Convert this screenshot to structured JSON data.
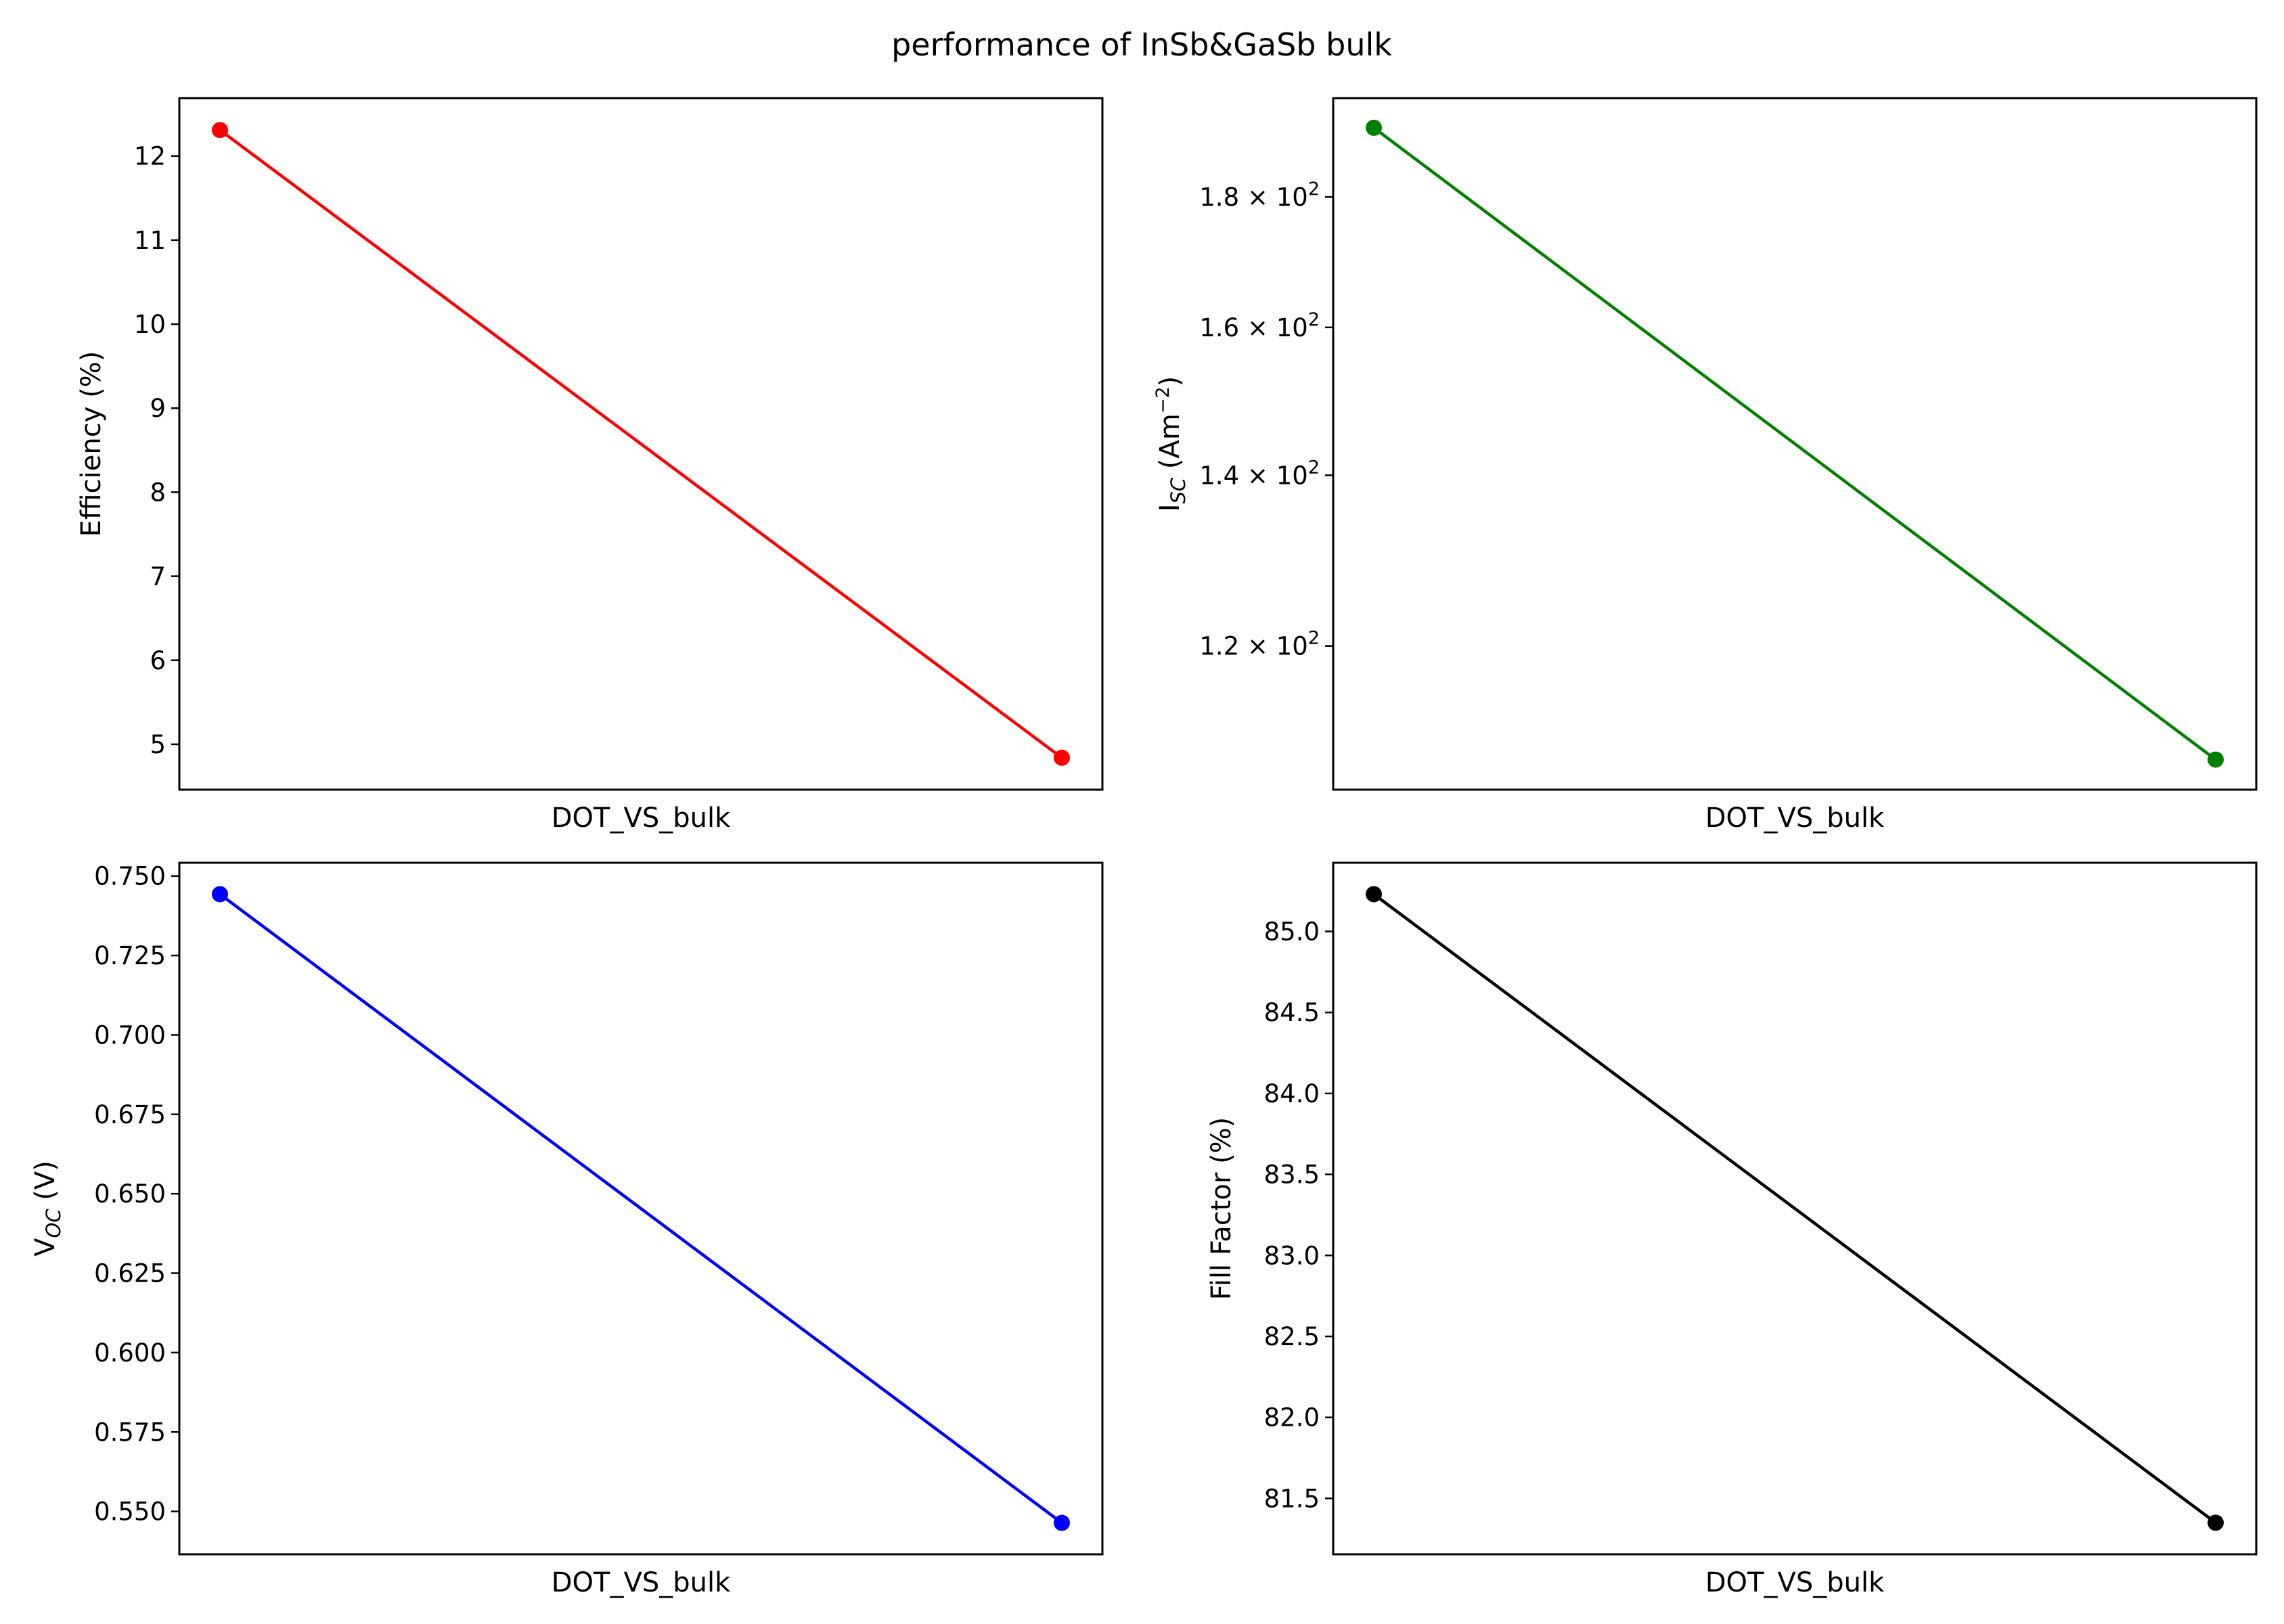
{
  "figure": {
    "title": "performance of InSb&GaSb bulk"
  },
  "chart_data": [
    {
      "type": "line",
      "ylabel": "Efficiency (%)",
      "xlabel": "DOT_VS_bulk",
      "x": [
        0,
        1
      ],
      "series": [
        {
          "values": [
            12.31,
            4.84
          ]
        }
      ],
      "color": "#ff0000",
      "ylim": [
        4.46,
        12.69
      ],
      "yscale": "linear",
      "yticks": [
        5,
        6,
        7,
        8,
        9,
        10,
        11,
        12
      ],
      "ytick_labels": [
        "5",
        "6",
        "7",
        "8",
        "9",
        "10",
        "11",
        "12"
      ],
      "xticks": []
    },
    {
      "type": "line",
      "ylabel_main": "I",
      "ylabel_sub": "SC",
      "ylabel_unit": " (Am",
      "ylabel_sup": "−2",
      "ylabel_end": ")",
      "xlabel": "DOT_VS_bulk",
      "x": [
        0,
        1
      ],
      "series": [
        {
          "values": [
            191.6,
            108.3
          ]
        }
      ],
      "color": "#008000",
      "ylim": [
        105.4,
        196.8
      ],
      "yscale": "log",
      "yticks": [
        120,
        140,
        160,
        180
      ],
      "ytick_mant": [
        "1.2",
        "1.4",
        "1.6",
        "1.8"
      ],
      "ytick_base": "× 10",
      "ytick_exp": "2",
      "xticks": []
    },
    {
      "type": "line",
      "ylabel_main": "V",
      "ylabel_sub": "OC",
      "ylabel_unit": " (V)",
      "xlabel": "DOT_VS_bulk",
      "x": [
        0,
        1
      ],
      "series": [
        {
          "values": [
            0.7443,
            0.5464
          ]
        }
      ],
      "color": "#0000ff",
      "ylim": [
        0.5365,
        0.7542
      ],
      "yscale": "linear",
      "yticks": [
        0.55,
        0.575,
        0.6,
        0.625,
        0.65,
        0.675,
        0.7,
        0.725,
        0.75
      ],
      "ytick_labels": [
        "0.550",
        "0.575",
        "0.600",
        "0.625",
        "0.650",
        "0.675",
        "0.700",
        "0.725",
        "0.750"
      ],
      "xticks": []
    },
    {
      "type": "line",
      "ylabel": "Fill Factor (%)",
      "xlabel": "DOT_VS_bulk",
      "x": [
        0,
        1
      ],
      "series": [
        {
          "values": [
            85.23,
            81.35
          ]
        }
      ],
      "color": "#000000",
      "ylim": [
        81.155,
        85.424
      ],
      "yscale": "linear",
      "yticks": [
        81.5,
        82.0,
        82.5,
        83.0,
        83.5,
        84.0,
        84.5,
        85.0
      ],
      "ytick_labels": [
        "81.5",
        "82.0",
        "82.5",
        "83.0",
        "83.5",
        "84.0",
        "84.5",
        "85.0"
      ],
      "xticks": []
    }
  ]
}
